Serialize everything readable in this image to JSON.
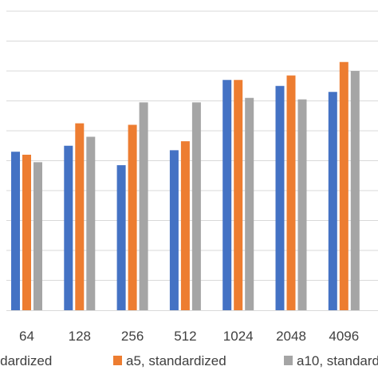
{
  "chart_data": {
    "type": "bar",
    "categories": [
      "64",
      "128",
      "256",
      "512",
      "1024",
      "2048",
      "4096"
    ],
    "series": [
      {
        "name": "standardized",
        "color": "#4472C4",
        "values": [
          5.3,
          5.5,
          4.85,
          5.35,
          7.7,
          7.5,
          7.3
        ]
      },
      {
        "name": "a5, standardized",
        "color": "#ED7D31",
        "values": [
          5.2,
          6.25,
          6.2,
          5.65,
          7.7,
          7.85,
          8.3
        ]
      },
      {
        "name": "a10, standard",
        "color": "#A5A5A5",
        "values": [
          4.95,
          5.8,
          6.95,
          6.95,
          7.1,
          7.05,
          8.0
        ]
      }
    ],
    "ylim": [
      0,
      10
    ],
    "grid": true,
    "legend_position": "bottom",
    "title": "",
    "xlabel": "",
    "ylabel": ""
  }
}
